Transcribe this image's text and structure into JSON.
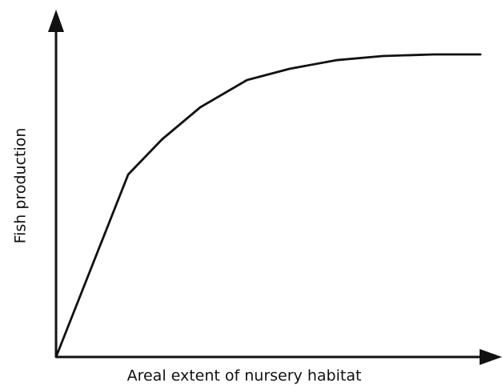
{
  "chart_data": {
    "type": "line",
    "x_label": "Areal extent of nursery habitat",
    "y_label": "Fish production",
    "x": [
      0,
      17,
      25,
      34,
      45,
      55,
      66,
      77,
      89,
      100
    ],
    "series": [
      {
        "color": "#111111",
        "values": [
          0,
          57,
          68,
          78,
          86.5,
          90,
          92.7,
          94,
          94.5,
          94.5
        ]
      }
    ],
    "xlim": [
      0,
      100
    ],
    "ylim": [
      0,
      100
    ],
    "grid": false
  }
}
